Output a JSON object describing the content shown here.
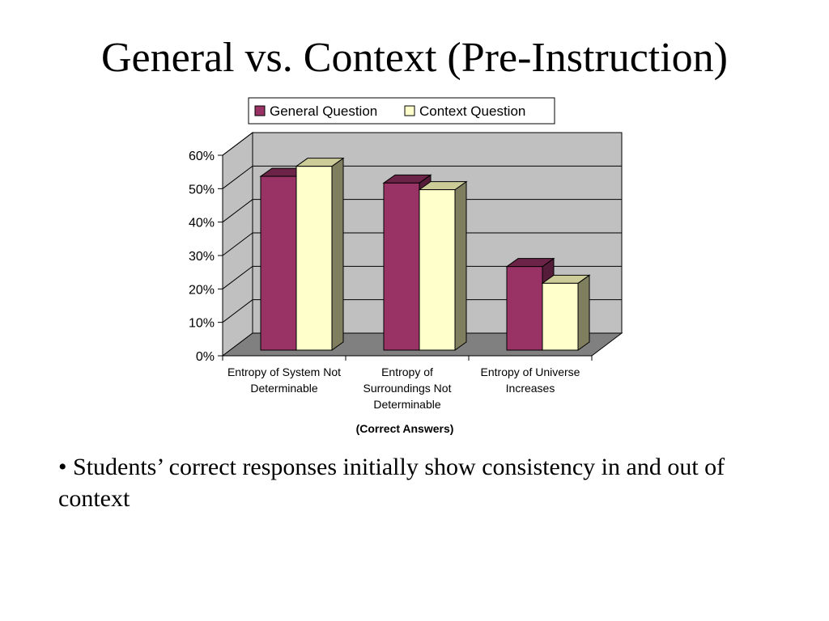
{
  "slide": {
    "title": "General vs. Context (Pre-Instruction)",
    "bullet_marker": "•",
    "bullet": "Students’ correct responses initially show consistency in and out of context"
  },
  "chart_data": {
    "type": "bar",
    "categories": [
      [
        "Entropy of System Not",
        "Determinable"
      ],
      [
        "Entropy of",
        "Surroundings Not",
        "Determinable"
      ],
      [
        "Entropy of Universe",
        "Increases"
      ]
    ],
    "series": [
      {
        "name": "General Question",
        "values": [
          0.52,
          0.5,
          0.25
        ],
        "color": "#993366"
      },
      {
        "name": "Context Question",
        "values": [
          0.55,
          0.48,
          0.2
        ],
        "color": "#FFFFCC"
      }
    ],
    "xlabel": "(Correct Answers)",
    "ylabel": "",
    "ylim": [
      0,
      0.6
    ],
    "yticks": [
      "0%",
      "10%",
      "20%",
      "30%",
      "40%",
      "50%",
      "60%"
    ],
    "grid": true,
    "legend": "top",
    "style": "3d-clustered-column",
    "colors": {
      "wall": "#C0C0C0",
      "floor": "#808080"
    }
  }
}
